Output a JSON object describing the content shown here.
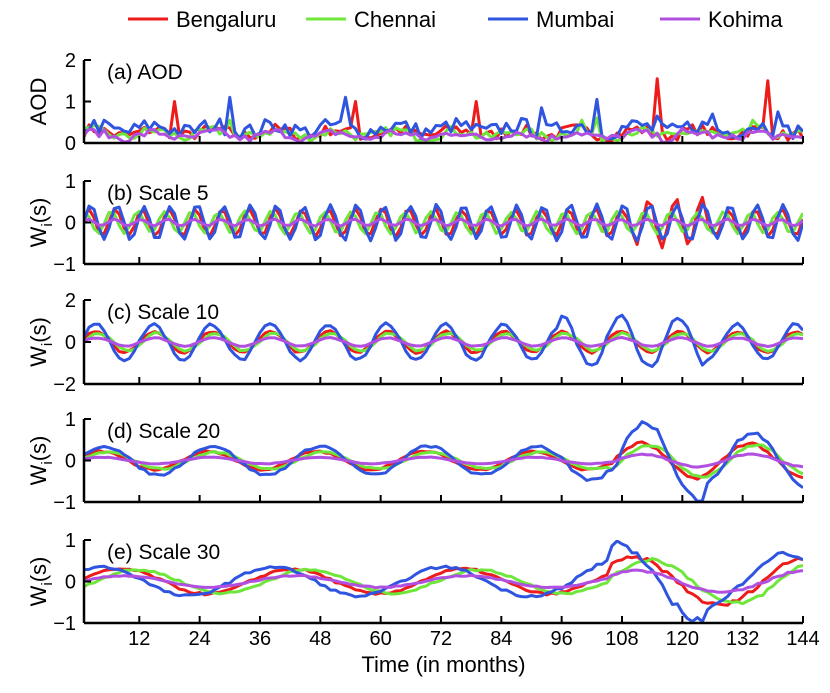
{
  "colors": {
    "axis": "#000000",
    "background": "#ffffff"
  },
  "legend": {
    "placement": "top",
    "entries": [
      {
        "name": "Bengaluru",
        "color": "#ee1b1b"
      },
      {
        "name": "Chennai",
        "color": "#6fe63a"
      },
      {
        "name": "Mumbai",
        "color": "#2f55e0"
      },
      {
        "name": "Kohima",
        "color": "#b04fe0"
      }
    ]
  },
  "xlabel": "Time (in months)",
  "chart_data": [
    {
      "type": "line",
      "panel_label": "(a) AOD",
      "ylabel": "AOD",
      "ylabel_sub": "",
      "xlim": [
        1,
        144
      ],
      "ylim": [
        0,
        2
      ],
      "yticks": [
        "0",
        "1",
        "2"
      ],
      "xticks": [
        12,
        24,
        36,
        48,
        60,
        72,
        84,
        96,
        108,
        120,
        132,
        144
      ],
      "show_xtick_labels": false,
      "generator": "aod",
      "series": [
        {
          "name": "Bengaluru",
          "color": "#ee1b1b",
          "values": []
        },
        {
          "name": "Chennai",
          "color": "#6fe63a",
          "values": []
        },
        {
          "name": "Mumbai",
          "color": "#2f55e0",
          "values": []
        },
        {
          "name": "Kohima",
          "color": "#b04fe0",
          "values": []
        }
      ]
    },
    {
      "type": "line",
      "panel_label": "(b) Scale 5",
      "ylabel": "W",
      "ylabel_sub": "i",
      "ylabel_suffix": "(s)",
      "xlim": [
        1,
        144
      ],
      "ylim": [
        -1,
        1
      ],
      "yticks": [
        "−1",
        "0",
        "1"
      ],
      "xticks": [
        12,
        24,
        36,
        48,
        60,
        72,
        84,
        96,
        108,
        120,
        132,
        144
      ],
      "show_xtick_labels": false,
      "generator": "osc",
      "period": 5.3,
      "series": [
        {
          "name": "Bengaluru",
          "amp": 0.32,
          "phase": 0.4
        },
        {
          "name": "Chennai",
          "amp": 0.26,
          "phase": 1.4
        },
        {
          "name": "Mumbai",
          "amp": 0.42,
          "phase": 0.0
        },
        {
          "name": "Kohima",
          "amp": 0.08,
          "phase": 0.7
        }
      ]
    },
    {
      "type": "line",
      "panel_label": "(c) Scale 10",
      "ylabel": "W",
      "ylabel_sub": "i",
      "ylabel_suffix": "(s)",
      "xlim": [
        1,
        144
      ],
      "ylim": [
        -2,
        2
      ],
      "yticks": [
        "−2",
        "0",
        "2"
      ],
      "xticks": [
        12,
        24,
        36,
        48,
        60,
        72,
        84,
        96,
        108,
        120,
        132,
        144
      ],
      "show_xtick_labels": false,
      "generator": "osc",
      "period": 11.6,
      "series": [
        {
          "name": "Bengaluru",
          "amp": 0.5,
          "phase": 0.3
        },
        {
          "name": "Chennai",
          "amp": 0.42,
          "phase": 0.0
        },
        {
          "name": "Mumbai",
          "amp": 0.85,
          "phase": 0.35
        },
        {
          "name": "Kohima",
          "amp": 0.2,
          "phase": 0.2
        }
      ]
    },
    {
      "type": "line",
      "panel_label": "(d) Scale 20",
      "ylabel": "W",
      "ylabel_sub": "i",
      "ylabel_suffix": "(s)",
      "xlim": [
        1,
        144
      ],
      "ylim": [
        -1,
        1
      ],
      "yticks": [
        "−1",
        "0",
        "1"
      ],
      "xticks": [
        12,
        24,
        36,
        48,
        60,
        72,
        84,
        96,
        108,
        120,
        132,
        144
      ],
      "show_xtick_labels": false,
      "generator": "osc",
      "period": 21.5,
      "series": [
        {
          "name": "Bengaluru",
          "amp": 0.22,
          "phase": 0.6
        },
        {
          "name": "Chennai",
          "amp": 0.2,
          "phase": 0.2
        },
        {
          "name": "Mumbai",
          "amp": 0.35,
          "phase": 0.4
        },
        {
          "name": "Kohima",
          "amp": 0.08,
          "phase": 0.5
        }
      ]
    },
    {
      "type": "line",
      "panel_label": "(e) Scale 30",
      "ylabel": "W",
      "ylabel_sub": "i",
      "ylabel_suffix": "(s)",
      "xlim": [
        1,
        144
      ],
      "ylim": [
        -1,
        1
      ],
      "yticks": [
        "−1",
        "0",
        "1"
      ],
      "xticks": [
        12,
        24,
        36,
        48,
        60,
        72,
        84,
        96,
        108,
        120,
        132,
        144
      ],
      "show_xtick_labels": true,
      "generator": "osc",
      "period": 34,
      "series": [
        {
          "name": "Bengaluru",
          "amp": 0.3,
          "phase": 0.2
        },
        {
          "name": "Chennai",
          "amp": 0.28,
          "phase": -0.4
        },
        {
          "name": "Mumbai",
          "amp": 0.35,
          "phase": 0.9
        },
        {
          "name": "Kohima",
          "amp": 0.14,
          "phase": 0.1
        }
      ]
    }
  ]
}
